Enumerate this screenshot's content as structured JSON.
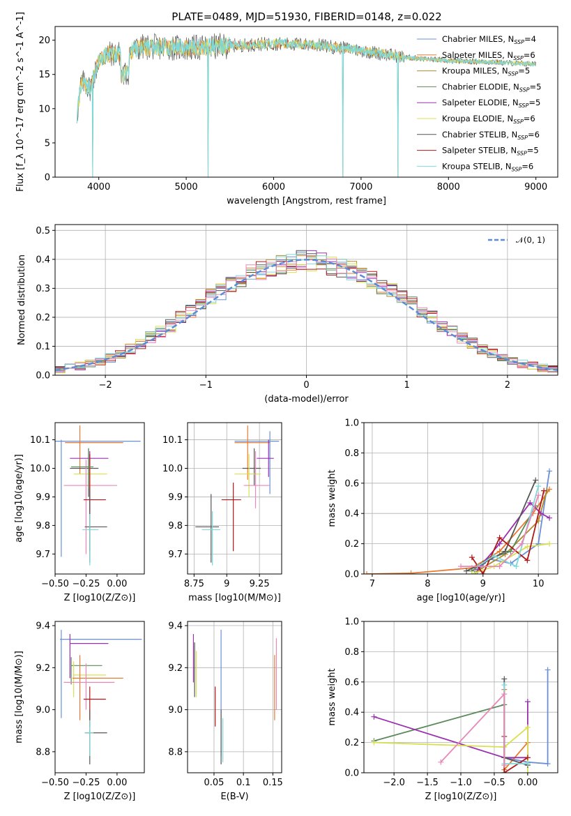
{
  "figure_title": "PLATE=0489, MJD=51930, FIBERID=0148, z=0.022",
  "colors": {
    "Chabrier MILES": "#6a8fd8",
    "Salpeter MILES": "#e87a30",
    "Kroupa MILES": "#b08a2a",
    "Chabrier ELODIE": "#5a8a5a",
    "Salpeter ELODIE": "#9a30b0",
    "Kroupa ELODIE": "#d8e050",
    "Chabrier STELIB": "#555555",
    "Salpeter STELIB": "#b01818",
    "Kroupa STELIB": "#80d8d8",
    "pink_series": "#e888b8"
  },
  "chart_data": [
    {
      "id": "spectrum",
      "type": "line",
      "xlabel": "wavelength [Angstrom, rest frame]",
      "ylabel": "Flux [f_λ 10^-17 erg cm^-2 s^-1 A^-1]",
      "xlim": [
        3500,
        9250
      ],
      "ylim": [
        0,
        22
      ],
      "xticks": [
        4000,
        5000,
        6000,
        7000,
        8000,
        9000
      ],
      "yticks": [
        0,
        5,
        10,
        15,
        20
      ],
      "grid": false,
      "legend_position": "top-right",
      "legend": [
        {
          "text": "Chabrier MILES, N",
          "sub": "SSP",
          "tail": "=4"
        },
        {
          "text": "Salpeter MILES, N",
          "sub": "SSP",
          "tail": "=6"
        },
        {
          "text": "Kroupa MILES, N",
          "sub": "SSP",
          "tail": "=5"
        },
        {
          "text": "Chabrier ELODIE, N",
          "sub": "SSP",
          "tail": "=5"
        },
        {
          "text": "Salpeter ELODIE, N",
          "sub": "SSP",
          "tail": "=5"
        },
        {
          "text": "Kroupa ELODIE, N",
          "sub": "SSP",
          "tail": "=6"
        },
        {
          "text": "Chabrier STELIB, N",
          "sub": "SSP",
          "tail": "=6"
        },
        {
          "text": "Salpeter STELIB, N",
          "sub": "SSP",
          "tail": "=5"
        },
        {
          "text": "Kroupa STELIB, N",
          "sub": "SSP",
          "tail": "=6"
        }
      ],
      "series_envelope": [
        [
          3750,
          9
        ],
        [
          3800,
          14
        ],
        [
          3900,
          13
        ],
        [
          3950,
          15
        ],
        [
          4000,
          17
        ],
        [
          4100,
          18
        ],
        [
          4300,
          18
        ],
        [
          4500,
          19
        ],
        [
          4800,
          19
        ],
        [
          5000,
          18.8
        ],
        [
          5500,
          19.2
        ],
        [
          6000,
          19.5
        ],
        [
          6500,
          19.3
        ],
        [
          7000,
          18.5
        ],
        [
          7500,
          17.5
        ],
        [
          8000,
          17
        ],
        [
          8500,
          16.8
        ],
        [
          9000,
          16.5
        ]
      ],
      "dips": [
        [
          3930,
          0
        ],
        [
          5250,
          0
        ],
        [
          6790,
          0
        ],
        [
          7420,
          0
        ]
      ]
    },
    {
      "id": "residuals",
      "type": "histogram",
      "xlabel": "(data-model)/error",
      "ylabel": "Normed distribution",
      "xlim": [
        -2.5,
        2.5
      ],
      "ylim": [
        0,
        0.52
      ],
      "xticks": [
        -2,
        -1,
        0,
        1,
        2
      ],
      "yticks": [
        0.0,
        0.1,
        0.2,
        0.3,
        0.4,
        0.5
      ],
      "grid": true,
      "legend_position": "top-right",
      "legend": [
        {
          "text": "𝒩(0, 1)"
        }
      ],
      "bin_centers": [
        -2.45,
        -2.35,
        -2.25,
        -2.15,
        -2.05,
        -1.95,
        -1.85,
        -1.75,
        -1.65,
        -1.55,
        -1.45,
        -1.35,
        -1.25,
        -1.15,
        -1.05,
        -0.95,
        -0.85,
        -0.75,
        -0.65,
        -0.55,
        -0.45,
        -0.35,
        -0.25,
        -0.15,
        -0.05,
        0.05,
        0.15,
        0.25,
        0.35,
        0.45,
        0.55,
        0.65,
        0.75,
        0.85,
        0.95,
        1.05,
        1.15,
        1.25,
        1.35,
        1.45,
        1.55,
        1.65,
        1.75,
        1.85,
        1.95,
        2.05,
        2.15,
        2.25,
        2.35,
        2.45
      ],
      "gaussian_bins": [
        0.02,
        0.025,
        0.032,
        0.04,
        0.05,
        0.06,
        0.075,
        0.09,
        0.11,
        0.13,
        0.15,
        0.17,
        0.2,
        0.22,
        0.25,
        0.27,
        0.29,
        0.31,
        0.33,
        0.35,
        0.36,
        0.37,
        0.38,
        0.39,
        0.395,
        0.395,
        0.39,
        0.38,
        0.37,
        0.36,
        0.35,
        0.33,
        0.31,
        0.29,
        0.27,
        0.25,
        0.22,
        0.2,
        0.17,
        0.15,
        0.13,
        0.11,
        0.09,
        0.075,
        0.06,
        0.05,
        0.04,
        0.032,
        0.025,
        0.02
      ]
    },
    {
      "id": "age_vs_Z",
      "type": "errorbar",
      "xlabel": "Z [log10(Z/Z⊙)]",
      "ylabel": "age  [log10(age/yr)]",
      "xlim": [
        -0.5,
        0.22
      ],
      "ylim": [
        9.63,
        10.16
      ],
      "xticks": [
        -0.5,
        -0.25,
        0.0
      ],
      "yticks": [
        9.7,
        9.8,
        9.9,
        10.0,
        10.1
      ],
      "grid": false,
      "points": [
        {
          "s": "Chabrier MILES",
          "x": -0.45,
          "y": 10.095,
          "xl": -0.5,
          "xh": 0.19,
          "yl": 9.69,
          "yh": 10.1
        },
        {
          "s": "Salpeter MILES",
          "x": -0.3,
          "y": 10.09,
          "xl": -0.42,
          "xh": 0.05,
          "yl": 9.98,
          "yh": 10.15
        },
        {
          "s": "Chabrier STELIB",
          "x": -0.23,
          "y": 10.0,
          "xl": -0.38,
          "xh": -0.15,
          "yl": 9.9,
          "yh": 10.07
        },
        {
          "s": "Salpeter ELODIE",
          "x": -0.22,
          "y": 10.035,
          "xl": -0.38,
          "xh": -0.07,
          "yl": 9.85,
          "yh": 10.06
        },
        {
          "s": "Kroupa ELODIE",
          "x": -0.22,
          "y": 9.98,
          "xl": -0.35,
          "xh": -0.08,
          "yl": 9.91,
          "yh": 10.01
        },
        {
          "s": "pink_series",
          "x": -0.25,
          "y": 9.94,
          "xl": -0.43,
          "xh": 0.0,
          "yl": 9.7,
          "yh": 10.03
        },
        {
          "s": "Salpeter STELIB",
          "x": -0.22,
          "y": 9.89,
          "xl": -0.27,
          "xh": -0.09,
          "yl": 9.71,
          "yh": 10.05
        },
        {
          "s": "Chabrier STELIB",
          "x": -0.22,
          "y": 9.795,
          "xl": -0.26,
          "xh": -0.08,
          "yl": 9.67,
          "yh": 9.93
        },
        {
          "s": "Kroupa STELIB",
          "x": -0.22,
          "y": 9.785,
          "xl": -0.28,
          "xh": -0.15,
          "yl": 9.66,
          "yh": 9.84
        },
        {
          "s": "Chabrier ELODIE",
          "x": -0.23,
          "y": 10.005,
          "xl": -0.37,
          "xh": -0.19,
          "yl": 9.93,
          "yh": 10.07
        }
      ]
    },
    {
      "id": "age_vs_mass",
      "type": "errorbar",
      "xlabel": "mass [log10(M/M⊙)]",
      "ylabel": "",
      "xlim": [
        8.7,
        9.42
      ],
      "ylim": [
        9.63,
        10.16
      ],
      "xticks": [
        8.75,
        9.0,
        9.25
      ],
      "yticks": [
        9.7,
        9.8,
        9.9,
        10.0,
        10.1
      ],
      "grid": true,
      "points": [
        {
          "s": "Chabrier MILES",
          "x": 9.33,
          "y": 10.095,
          "xl": 9.06,
          "xh": 9.4,
          "yl": 9.91,
          "yh": 10.13
        },
        {
          "s": "Salpeter MILES",
          "x": 9.16,
          "y": 10.09,
          "xl": 9.06,
          "xh": 9.33,
          "yl": 9.96,
          "yh": 10.15
        },
        {
          "s": "Chabrier STELIB",
          "x": 9.21,
          "y": 10.0,
          "xl": 9.12,
          "xh": 9.26,
          "yl": 9.94,
          "yh": 10.07
        },
        {
          "s": "Salpeter ELODIE",
          "x": 9.32,
          "y": 10.035,
          "xl": 9.23,
          "xh": 9.36,
          "yl": 9.97,
          "yh": 10.1
        },
        {
          "s": "Kroupa ELODIE",
          "x": 9.17,
          "y": 9.98,
          "xl": 9.06,
          "xh": 9.26,
          "yl": 9.9,
          "yh": 10.05
        },
        {
          "s": "pink_series",
          "x": 9.22,
          "y": 9.94,
          "xl": 9.13,
          "xh": 9.33,
          "yl": 9.86,
          "yh": 10.06
        },
        {
          "s": "Salpeter STELIB",
          "x": 9.05,
          "y": 9.89,
          "xl": 8.96,
          "xh": 9.11,
          "yl": 9.71,
          "yh": 9.95
        },
        {
          "s": "Chabrier STELIB",
          "x": 8.88,
          "y": 9.795,
          "xl": 8.76,
          "xh": 8.94,
          "yl": 9.67,
          "yh": 9.91
        },
        {
          "s": "Kroupa STELIB",
          "x": 8.89,
          "y": 9.785,
          "xl": 8.81,
          "xh": 8.95,
          "yl": 9.66,
          "yh": 9.85
        }
      ]
    },
    {
      "id": "weight_vs_age",
      "type": "line",
      "xlabel": "age  [log10(age/yr)]",
      "ylabel": "mass weight",
      "xlim": [
        6.85,
        10.35
      ],
      "ylim": [
        0,
        1.0
      ],
      "xticks": [
        7,
        8,
        9,
        10
      ],
      "yticks": [
        0.0,
        0.2,
        0.4,
        0.6,
        0.8,
        1.0
      ],
      "grid": true,
      "series": [
        {
          "s": "Chabrier MILES",
          "x": [
            8.85,
            9.1,
            9.5,
            10.0,
            10.2
          ],
          "y": [
            0.0,
            0.1,
            0.07,
            0.2,
            0.68
          ]
        },
        {
          "s": "Salpeter MILES",
          "x": [
            6.9,
            7.7,
            8.8,
            9.3,
            9.9,
            10.2
          ],
          "y": [
            0.0,
            0.005,
            0.04,
            0.15,
            0.4,
            0.56
          ]
        },
        {
          "s": "Kroupa MILES",
          "x": [
            8.9,
            9.4,
            10.0,
            10.15
          ],
          "y": [
            0.02,
            0.13,
            0.35,
            0.55
          ]
        },
        {
          "s": "Chabrier ELODIE",
          "x": [
            8.8,
            9.1,
            9.5,
            9.95
          ],
          "y": [
            0.02,
            0.1,
            0.15,
            0.45
          ]
        },
        {
          "s": "Salpeter ELODIE",
          "x": [
            8.9,
            9.3,
            9.85,
            10.05,
            10.2
          ],
          "y": [
            0.03,
            0.2,
            0.47,
            0.4,
            0.37
          ]
        },
        {
          "s": "Kroupa ELODIE",
          "x": [
            8.8,
            9.2,
            9.8,
            10.2
          ],
          "y": [
            0.0,
            0.05,
            0.18,
            0.2
          ]
        },
        {
          "s": "Chabrier STELIB",
          "x": [
            8.7,
            9.0,
            9.4,
            9.95
          ],
          "y": [
            0.02,
            0.07,
            0.15,
            0.62
          ]
        },
        {
          "s": "Salpeter STELIB",
          "x": [
            8.8,
            9.0,
            9.3,
            9.8,
            10.1
          ],
          "y": [
            0.11,
            0.0,
            0.24,
            0.09,
            0.55
          ]
        },
        {
          "s": "Kroupa STELIB",
          "x": [
            8.9,
            9.2,
            9.6,
            10.0
          ],
          "y": [
            0.05,
            0.12,
            0.05,
            0.58
          ]
        },
        {
          "s": "pink_series",
          "x": [
            8.6,
            9.3,
            9.7,
            10.0
          ],
          "y": [
            0.05,
            0.05,
            0.2,
            0.52
          ]
        }
      ]
    },
    {
      "id": "mass_vs_Z",
      "type": "errorbar",
      "xlabel": "Z [log10(Z/Z⊙)]",
      "ylabel": "mass [log10(M/M⊙)]",
      "xlim": [
        -0.5,
        0.22
      ],
      "ylim": [
        8.7,
        9.42
      ],
      "xticks": [
        -0.5,
        -0.25,
        0.0
      ],
      "yticks": [
        8.8,
        9.0,
        9.2,
        9.4
      ],
      "grid": false,
      "points": [
        {
          "s": "Chabrier MILES",
          "x": -0.45,
          "y": 9.335,
          "xl": -0.46,
          "xh": 0.2,
          "yl": 8.96,
          "yh": 9.38
        },
        {
          "s": "Salpeter ELODIE",
          "x": -0.38,
          "y": 9.315,
          "xl": -0.38,
          "xh": -0.07,
          "yl": 9.15,
          "yh": 9.36
        },
        {
          "s": "Chabrier ELODIE",
          "x": -0.37,
          "y": 9.21,
          "xl": -0.37,
          "xh": -0.12,
          "yl": 9.12,
          "yh": 9.25
        },
        {
          "s": "Kroupa ELODIE",
          "x": -0.35,
          "y": 9.165,
          "xl": -0.35,
          "xh": -0.09,
          "yl": 9.06,
          "yh": 9.23
        },
        {
          "s": "Salpeter MILES",
          "x": -0.3,
          "y": 9.15,
          "xl": -0.36,
          "xh": 0.05,
          "yl": 8.95,
          "yh": 9.26
        },
        {
          "s": "pink_series",
          "x": -0.25,
          "y": 9.13,
          "xl": -0.43,
          "xh": -0.02,
          "yl": 9.0,
          "yh": 9.22
        },
        {
          "s": "Salpeter STELIB",
          "x": -0.22,
          "y": 9.05,
          "xl": -0.27,
          "xh": -0.09,
          "yl": 8.92,
          "yh": 9.11
        },
        {
          "s": "Chabrier STELIB",
          "x": -0.22,
          "y": 8.89,
          "xl": -0.26,
          "xh": -0.08,
          "yl": 8.74,
          "yh": 9.0
        },
        {
          "s": "Kroupa STELIB",
          "x": -0.22,
          "y": 8.89,
          "xl": -0.26,
          "xh": -0.19,
          "yl": 8.78,
          "yh": 8.95
        }
      ]
    },
    {
      "id": "mass_vs_EBV",
      "type": "errorbar",
      "xlabel": "E(B-V)",
      "ylabel": "",
      "xlim": [
        0.005,
        0.165
      ],
      "ylim": [
        8.7,
        9.42
      ],
      "xticks": [
        0.05,
        0.1,
        0.15
      ],
      "yticks": [
        8.8,
        9.0,
        9.2,
        9.4
      ],
      "grid": true,
      "points": [
        {
          "s": "Salpeter ELODIE",
          "x": 0.015,
          "y": 9.25,
          "yl": 9.13,
          "yh": 9.36
        },
        {
          "s": "Chabrier STELIB",
          "x": 0.017,
          "y": 9.2,
          "yl": 9.06,
          "yh": 9.32
        },
        {
          "s": "Kroupa ELODIE",
          "x": 0.02,
          "y": 9.16,
          "yl": 9.06,
          "yh": 9.28
        },
        {
          "s": "Salpeter STELIB",
          "x": 0.052,
          "y": 9.02,
          "yl": 8.92,
          "yh": 9.11
        },
        {
          "s": "Chabrier MILES",
          "x": 0.062,
          "y": 9.16,
          "yl": 8.78,
          "yh": 9.38
        },
        {
          "s": "Chabrier STELIB",
          "x": 0.062,
          "y": 8.88,
          "yl": 8.74,
          "yh": 9.0
        },
        {
          "s": "Kroupa STELIB",
          "x": 0.065,
          "y": 8.89,
          "yl": 8.75,
          "yh": 8.96
        },
        {
          "s": "Salpeter MILES",
          "x": 0.153,
          "y": 9.1,
          "yl": 8.95,
          "yh": 9.26
        },
        {
          "s": "pink_series",
          "x": 0.156,
          "y": 9.18,
          "yl": 9.0,
          "yh": 9.34
        }
      ]
    },
    {
      "id": "weight_vs_Z",
      "type": "line",
      "xlabel": "Z [log10(Z/Z⊙)]",
      "ylabel": "mass weight",
      "xlim": [
        -2.45,
        0.45
      ],
      "ylim": [
        0,
        1.0
      ],
      "xticks": [
        -2.0,
        -1.5,
        -1.0,
        -0.5,
        0.0
      ],
      "yticks": [
        0.0,
        0.2,
        0.4,
        0.6,
        0.8,
        1.0
      ],
      "grid": true,
      "series": [
        {
          "s": "Chabrier MILES",
          "x": [
            -0.35,
            0.0,
            0.3,
            0.3
          ],
          "y": [
            0.1,
            0.07,
            0.06,
            0.68
          ]
        },
        {
          "s": "Salpeter MILES",
          "x": [
            -0.35,
            -0.35,
            0.0
          ],
          "y": [
            0.55,
            0.02,
            0.2
          ]
        },
        {
          "s": "Chabrier ELODIE",
          "x": [
            -2.3,
            -0.35,
            -0.35
          ],
          "y": [
            0.21,
            0.45,
            0.0
          ]
        },
        {
          "s": "Salpeter ELODIE",
          "x": [
            -2.3,
            -0.35,
            0.0,
            0.0
          ],
          "y": [
            0.37,
            0.1,
            0.1,
            0.47
          ]
        },
        {
          "s": "Kroupa ELODIE",
          "x": [
            -2.3,
            -0.35,
            0.0,
            0.0
          ],
          "y": [
            0.2,
            0.17,
            0.3,
            0.0
          ]
        },
        {
          "s": "Chabrier STELIB",
          "x": [
            -0.35,
            -0.35,
            0.0
          ],
          "y": [
            0.62,
            0.1,
            0.05
          ]
        },
        {
          "s": "Salpeter STELIB",
          "x": [
            -0.35,
            -0.35,
            0.0
          ],
          "y": [
            0.24,
            0.0,
            0.1
          ]
        },
        {
          "s": "Kroupa STELIB",
          "x": [
            -0.35,
            -0.35,
            0.0
          ],
          "y": [
            0.58,
            0.06,
            0.06
          ]
        },
        {
          "s": "pink_series",
          "x": [
            -1.3,
            -0.35,
            -0.35
          ],
          "y": [
            0.07,
            0.52,
            0.05
          ]
        }
      ]
    }
  ]
}
